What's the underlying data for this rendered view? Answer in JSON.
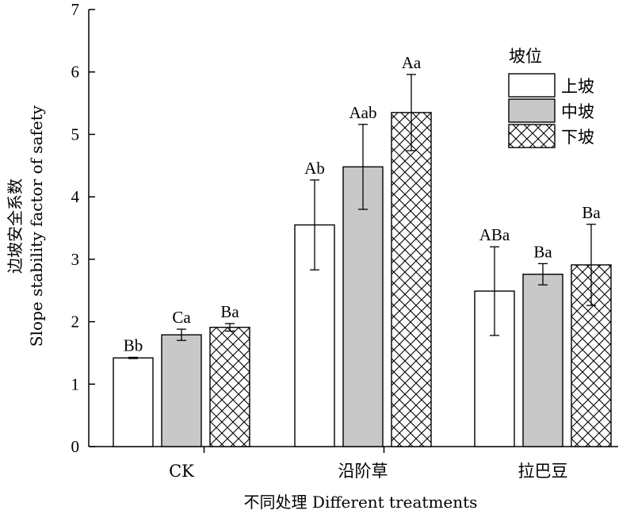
{
  "chart_data": {
    "type": "bar",
    "categories": [
      "CK",
      "沿阶草",
      "拉巴豆"
    ],
    "series": [
      {
        "name": "上坡",
        "fill": "#ffffff",
        "pattern": "none",
        "values": [
          1.42,
          3.55,
          2.49
        ],
        "errors": [
          0.01,
          0.72,
          0.71
        ],
        "labels": [
          "Bb",
          "Ab",
          "ABa"
        ]
      },
      {
        "name": "中坡",
        "fill": "#c8c8c8",
        "pattern": "none",
        "values": [
          1.79,
          4.48,
          2.76
        ],
        "errors": [
          0.09,
          0.68,
          0.17
        ],
        "labels": [
          "Ca",
          "Aab",
          "Ba"
        ]
      },
      {
        "name": "下坡",
        "fill": "#ffffff",
        "pattern": "crosshatch",
        "values": [
          1.91,
          5.35,
          2.91
        ],
        "errors": [
          0.06,
          0.61,
          0.65
        ],
        "labels": [
          "Ba",
          "Aa",
          "Ba"
        ]
      }
    ],
    "ylim": [
      0,
      7
    ],
    "yticks": [
      0,
      1,
      2,
      3,
      4,
      5,
      6,
      7
    ],
    "ylabel_line1": "边坡安全系数",
    "ylabel_line2": "Slope stability factor of safety",
    "xlabel": "不同处理 Different treatments",
    "legend_title": "坡位",
    "legend_position": "top-right",
    "grid": false
  }
}
